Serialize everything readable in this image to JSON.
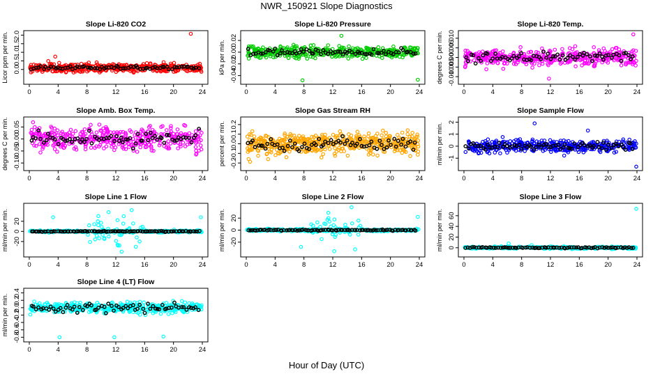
{
  "figure": {
    "title": "NWR_150921  Slope Diagnostics",
    "xlabel": "Hour of Day (UTC)"
  },
  "chart_data": [
    {
      "type": "scatter",
      "title": "Slope Li-820 CO2",
      "ylabel": "Licor ppm per min.",
      "xlim": [
        0,
        24
      ],
      "xticks": [
        0,
        4,
        8,
        12,
        16,
        20,
        24
      ],
      "ylim": [
        -0.7,
        2.1
      ],
      "yticks": [
        0.0,
        0.5,
        1.0,
        1.5,
        2.0
      ],
      "ytick_labels": [
        "0.0",
        "0.5",
        "1.0",
        "1.5",
        "2.0"
      ],
      "color": "#ff0000",
      "center": 0.1,
      "spread": 0.18,
      "n": 420,
      "n_black": 70,
      "black_spread": 0.07,
      "outliers": [
        {
          "x": 22.4,
          "y": 2.08
        },
        {
          "x": 3.6,
          "y": 0.75
        }
      ]
    },
    {
      "type": "scatter",
      "title": "Slope Li-820 Pressure",
      "ylabel": "kPa per min.",
      "xlim": [
        0,
        24
      ],
      "xticks": [
        0,
        4,
        8,
        12,
        16,
        20,
        24
      ],
      "ylim": [
        -0.05,
        0.032
      ],
      "yticks": [
        -0.04,
        -0.02,
        0.0,
        0.02
      ],
      "ytick_labels": [
        "-0.04",
        "-0.02",
        "0.00",
        "0.02"
      ],
      "color": "#00cc00",
      "center": 0.0,
      "spread": 0.007,
      "n": 420,
      "n_black": 70,
      "black_spread": 0.004,
      "outliers": [
        {
          "x": 7.8,
          "y": -0.048
        },
        {
          "x": 23.8,
          "y": -0.047
        },
        {
          "x": 13.2,
          "y": 0.028
        }
      ]
    },
    {
      "type": "scatter",
      "title": "Slope Li-820 Temp.",
      "ylabel": "degrees C per min.",
      "xlim": [
        0,
        24
      ],
      "xticks": [
        0,
        4,
        8,
        12,
        16,
        20,
        24
      ],
      "ylim": [
        -0.0125,
        0.0125
      ],
      "yticks": [
        -0.01,
        -0.005,
        0.0,
        0.005,
        0.01
      ],
      "ytick_labels": [
        "-0.010",
        "-0.005",
        "0.000",
        "0.005",
        "0.010"
      ],
      "color": "#ff00ff",
      "center": 0.0,
      "spread": 0.003,
      "n": 420,
      "n_black": 70,
      "black_spread": 0.002,
      "outliers": [
        {
          "x": 23.5,
          "y": 0.012
        },
        {
          "x": 11.8,
          "y": -0.011
        }
      ]
    },
    {
      "type": "scatter",
      "title": "Slope Amb. Box Temp.",
      "ylabel": "degrees C per min.",
      "xlim": [
        0,
        24
      ],
      "xticks": [
        0,
        4,
        8,
        12,
        16,
        20,
        24
      ],
      "ylim": [
        -0.12,
        0.08
      ],
      "yticks": [
        -0.1,
        -0.05,
        0.0,
        0.05
      ],
      "ytick_labels": [
        "-0.10",
        "-0.05",
        "0.00",
        "0.05"
      ],
      "color": "#ff00ff",
      "center": 0.0,
      "spread": 0.035,
      "n": 420,
      "n_black": 70,
      "black_spread": 0.02,
      "outliers": []
    },
    {
      "type": "scatter",
      "title": "Slope Gas Stream RH",
      "ylabel": "percent per min.",
      "xlim": [
        0,
        24
      ],
      "xticks": [
        0,
        4,
        8,
        12,
        16,
        20,
        24
      ],
      "ylim": [
        -0.25,
        0.25
      ],
      "yticks": [
        -0.2,
        -0.1,
        0.0,
        0.1,
        0.2
      ],
      "ytick_labels": [
        "-0.2",
        "-0.1",
        "0.0",
        "0.1",
        "0.2"
      ],
      "color": "#ffa500",
      "center": 0.0,
      "spread": 0.08,
      "n": 520,
      "n_black": 70,
      "black_spread": 0.05,
      "outliers": []
    },
    {
      "type": "scatter",
      "title": "Slope Sample Flow",
      "ylabel": "ml/min per min.",
      "xlim": [
        0,
        24
      ],
      "xticks": [
        0,
        4,
        8,
        12,
        16,
        20,
        24
      ],
      "ylim": [
        -1.8,
        2.2
      ],
      "yticks": [
        -1,
        0,
        1,
        2
      ],
      "ytick_labels": [
        "-1",
        "0",
        "1",
        "2"
      ],
      "color": "#0000ff",
      "center": 0.0,
      "spread": 0.35,
      "n": 420,
      "n_black": 70,
      "black_spread": 0.2,
      "outliers": [
        {
          "x": 9.8,
          "y": 1.9
        },
        {
          "x": 23.9,
          "y": -1.7
        },
        {
          "x": 17.2,
          "y": 1.3
        }
      ]
    },
    {
      "type": "scatter",
      "title": "Slope Line 1 Flow",
      "ylabel": "ml/min per min.",
      "xlim": [
        0,
        24
      ],
      "xticks": [
        0,
        4,
        8,
        12,
        16,
        20,
        24
      ],
      "ylim": [
        -45,
        50
      ],
      "yticks": [
        -20,
        0,
        20
      ],
      "ytick_labels": [
        "-20",
        "0",
        "20"
      ],
      "color": "#00ffff",
      "center": 0.0,
      "spread": 1.5,
      "n": 260,
      "n_black": 90,
      "black_spread": 0.5,
      "outliers": [
        {
          "x": 3.3,
          "y": 28
        },
        {
          "x": 11.0,
          "y": 38
        },
        {
          "x": 12.3,
          "y": -28
        },
        {
          "x": 13.1,
          "y": 30
        },
        {
          "x": 14.2,
          "y": 42
        },
        {
          "x": 15.3,
          "y": -20
        },
        {
          "x": 9.5,
          "y": 20
        },
        {
          "x": 10.4,
          "y": -15
        },
        {
          "x": 12.8,
          "y": -40
        },
        {
          "x": 23.8,
          "y": 28
        },
        {
          "x": 8.3,
          "y": 12
        },
        {
          "x": 14.9,
          "y": -12
        }
      ],
      "burst": {
        "from": 8,
        "to": 16,
        "n": 40,
        "spread": 18
      }
    },
    {
      "type": "scatter",
      "title": "Slope Line 2 Flow",
      "ylabel": "ml/min per min.",
      "xlim": [
        0,
        24
      ],
      "xticks": [
        0,
        4,
        8,
        12,
        16,
        20,
        24
      ],
      "ylim": [
        -40,
        40
      ],
      "yticks": [
        -20,
        0,
        20
      ],
      "ytick_labels": [
        "-20",
        "0",
        "20"
      ],
      "color": "#00ffff",
      "center": 0.0,
      "spread": 1.5,
      "n": 260,
      "n_black": 90,
      "black_spread": 0.7,
      "outliers": [
        {
          "x": 7.6,
          "y": -28
        },
        {
          "x": 14.6,
          "y": 38
        },
        {
          "x": 15.1,
          "y": -32
        },
        {
          "x": 12.2,
          "y": -35
        },
        {
          "x": 23.8,
          "y": 22
        },
        {
          "x": 11.4,
          "y": 20
        }
      ],
      "burst": {
        "from": 9,
        "to": 16,
        "n": 38,
        "spread": 14
      }
    },
    {
      "type": "scatter",
      "title": "Slope Line 3 Flow",
      "ylabel": "ml/min per min.",
      "xlim": [
        0,
        24
      ],
      "xticks": [
        0,
        4,
        8,
        12,
        16,
        20,
        24
      ],
      "ylim": [
        -12,
        78
      ],
      "yticks": [
        0,
        20,
        40,
        60
      ],
      "ytick_labels": [
        "0",
        "20",
        "40",
        "60"
      ],
      "color": "#00ffff",
      "center": 0.0,
      "spread": 1.5,
      "n": 320,
      "n_black": 80,
      "black_spread": 0.8,
      "outliers": [
        {
          "x": 23.9,
          "y": 73
        },
        {
          "x": 6.2,
          "y": 8
        },
        {
          "x": 9.4,
          "y": 5
        }
      ]
    },
    {
      "type": "scatter",
      "title": "Slope Line 4 (LT) Flow",
      "ylabel": "ml/min per min.",
      "xlim": [
        0,
        24
      ],
      "xticks": [
        0,
        4,
        8,
        12,
        16,
        20,
        24
      ],
      "ylim": [
        -0.85,
        0.45
      ],
      "yticks": [
        -0.8,
        -0.6,
        -0.4,
        -0.2,
        0.0,
        0.2,
        0.4
      ],
      "ytick_labels": [
        "-0.8",
        "-0.6",
        "-0.4",
        "-0.2",
        "0.0",
        "0.2",
        "0.4"
      ],
      "color": "#00ffff",
      "center": 0.0,
      "spread": 0.1,
      "n": 420,
      "n_black": 70,
      "black_spread": 0.08,
      "outliers": [
        {
          "x": 4.2,
          "y": -0.8
        },
        {
          "x": 11.8,
          "y": -0.8
        },
        {
          "x": 18.6,
          "y": -0.78
        }
      ]
    }
  ]
}
